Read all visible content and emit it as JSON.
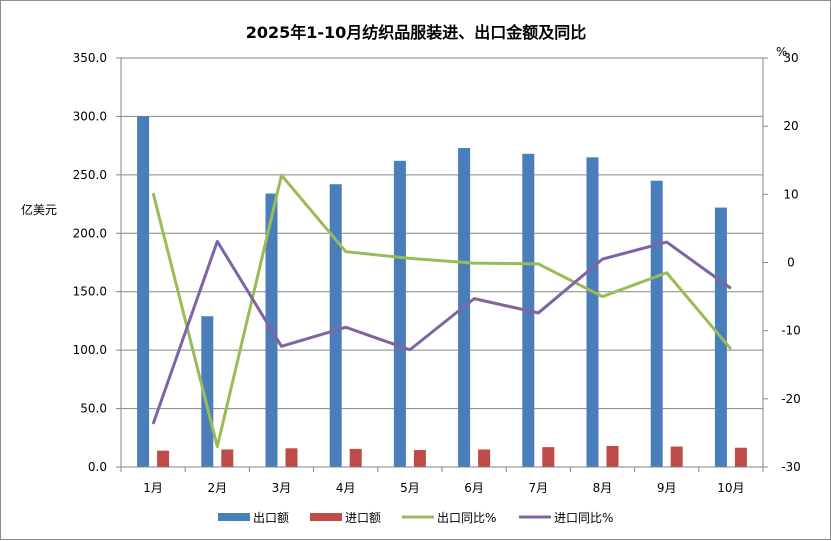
{
  "chart_data": {
    "type": "bar",
    "title": "2025年1-10月纺织品服装进、出口金额及同比",
    "ylabel_left": "亿美元",
    "ylabel_right": "%",
    "categories": [
      "1月",
      "2月",
      "3月",
      "4月",
      "5月",
      "6月",
      "7月",
      "8月",
      "9月",
      "10月"
    ],
    "y_left": {
      "min": 0,
      "max": 350,
      "step": 50,
      "tick_labels": [
        "0.0",
        "50.0",
        "100.0",
        "150.0",
        "200.0",
        "250.0",
        "300.0",
        "350.0"
      ]
    },
    "y_right": {
      "min": -30,
      "max": 30,
      "step": 10,
      "tick_labels": [
        "-30",
        "-20",
        "-10",
        "0",
        "10",
        "20",
        "30"
      ]
    },
    "grid": "horizontal",
    "legend_position": "bottom",
    "series": [
      {
        "name": "出口额",
        "type": "bar",
        "axis": "left",
        "color": "#4a7ebb",
        "values": [
          300.0,
          129.0,
          234.0,
          242.0,
          262.0,
          273.0,
          268.0,
          265.0,
          245.0,
          222.0
        ]
      },
      {
        "name": "进口额",
        "type": "bar",
        "axis": "left",
        "color": "#be4b48",
        "values": [
          14.0,
          15.0,
          16.0,
          15.5,
          14.5,
          15.0,
          17.0,
          18.0,
          17.5,
          16.5
        ]
      },
      {
        "name": "出口同比%",
        "type": "line",
        "axis": "right",
        "color": "#9bbb59",
        "values": [
          10.2,
          -27.0,
          12.8,
          1.6,
          0.6,
          -0.1,
          -0.2,
          -5.0,
          -1.5,
          -12.7
        ]
      },
      {
        "name": "进口同比%",
        "type": "line",
        "axis": "right",
        "color": "#8064a2",
        "values": [
          -23.7,
          3.1,
          -12.3,
          -9.5,
          -12.8,
          -5.3,
          -7.4,
          0.5,
          3.0,
          -3.8
        ]
      }
    ]
  }
}
